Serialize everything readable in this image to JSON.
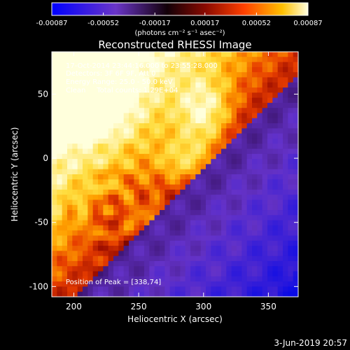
{
  "chart_data": {
    "type": "heatmap",
    "title": "Reconstructed RHESSI Image",
    "xlabel": "Heliocentric X (arcsec)",
    "ylabel": "Heliocentric Y (arcsec)",
    "xlim": [
      183,
      373
    ],
    "ylim": [
      -108,
      83
    ],
    "xticks": [
      200,
      250,
      300,
      350
    ],
    "yticks": [
      -100,
      -50,
      0,
      50
    ],
    "colorbar": {
      "ticks": [
        "-0.00087",
        "-0.00052",
        "-0.00017",
        "0.00017",
        "0.00052",
        "0.00087"
      ],
      "range": [
        -0.00087,
        0.00087
      ],
      "unit_label": "(photons cm⁻² s⁻¹ asec⁻²)"
    },
    "annotations": [
      "17-Oct-2014 23:44:16.000 to 23:55:28.000",
      "Detectors: 3F 6F 9F, Att 0",
      "Energy Range: 25.0 - 50.0 keV",
      "Clean     Total counts: 1.29E+04"
    ],
    "peak_label": "Position of Peak = [338,74]",
    "peak": [
      338,
      74
    ]
  },
  "footer_date": "3-Jun-2019 20:57",
  "colors": {
    "background": "#000000",
    "text": "#ffffff"
  }
}
